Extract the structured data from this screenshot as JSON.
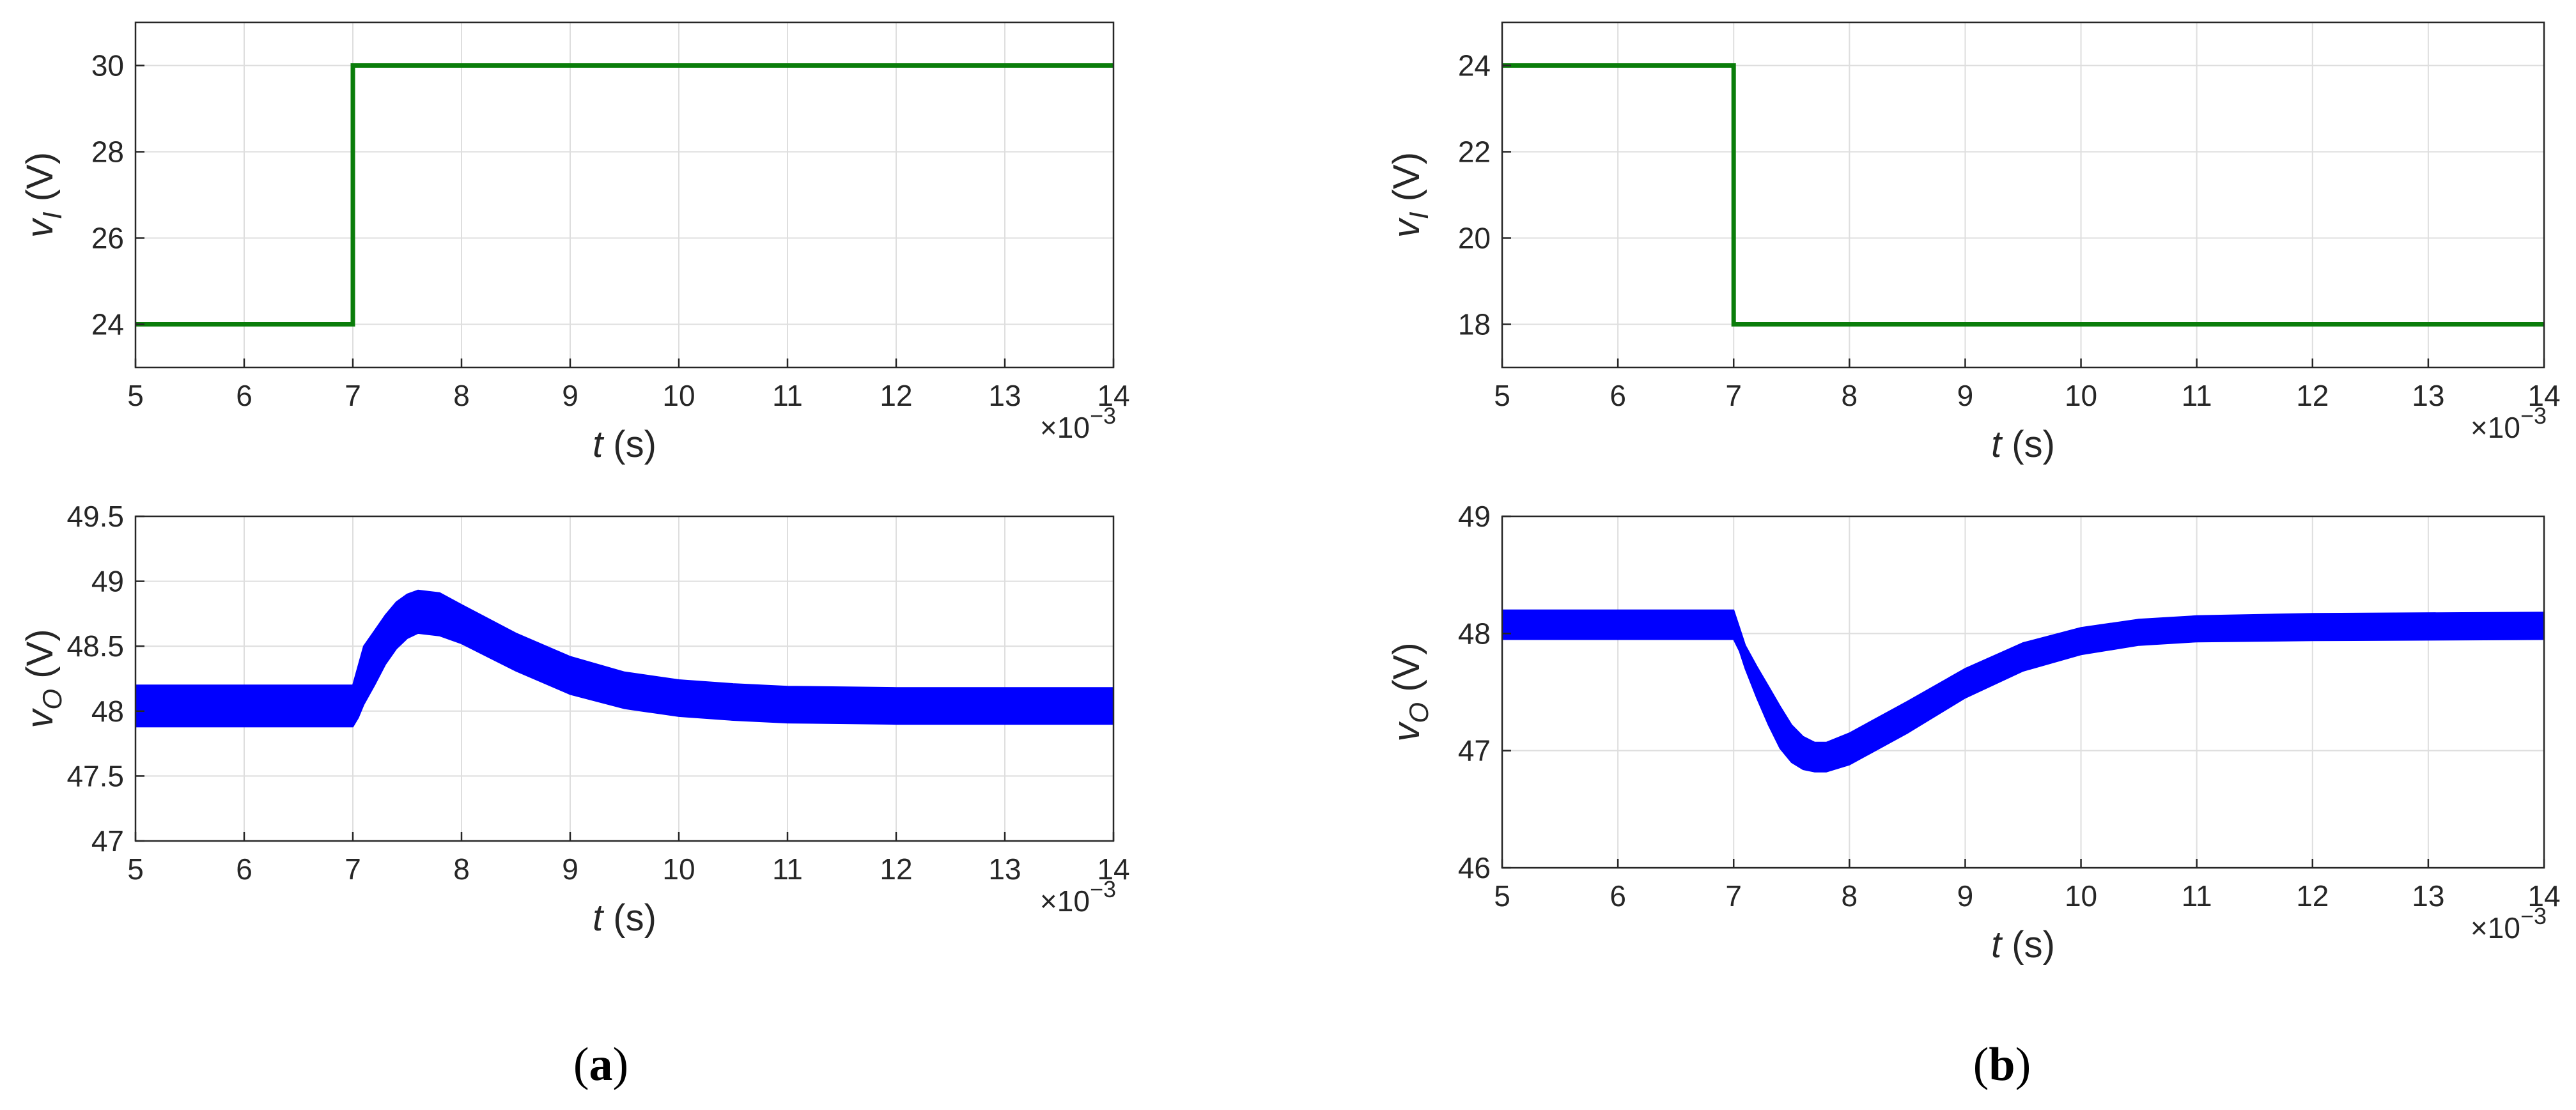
{
  "panels": [
    {
      "label": "a",
      "caption_open": "(",
      "caption_close": ")"
    },
    {
      "label": "b",
      "caption_open": "(",
      "caption_close": ")"
    }
  ],
  "exponent": {
    "base": "×10",
    "power": "−3"
  },
  "colors": {
    "input": "#0a7d0a",
    "output": "#0000ff",
    "grid": "#dedede",
    "axis": "#262626"
  },
  "chart_data": [
    {
      "id": "a-top",
      "type": "line",
      "ylabel": {
        "var": "v",
        "sub": "I",
        "unit": " (V)"
      },
      "xlabel": {
        "var": "t",
        "unit": " (s)"
      },
      "xlim": [
        5,
        14
      ],
      "ylim": [
        23,
        31
      ],
      "xticks": [
        5,
        6,
        7,
        8,
        9,
        10,
        11,
        12,
        13,
        14
      ],
      "yticks": [
        24,
        26,
        28,
        30
      ],
      "grid": true,
      "series": [
        {
          "x": [
            5,
            7,
            7,
            14
          ],
          "y": [
            24,
            24,
            30,
            30
          ]
        }
      ]
    },
    {
      "id": "a-bottom",
      "type": "area",
      "ylabel": {
        "var": "v",
        "sub": "O",
        "unit": " (V)"
      },
      "xlabel": {
        "var": "t",
        "unit": " (s)"
      },
      "xlim": [
        5,
        14
      ],
      "ylim": [
        47,
        49.5
      ],
      "xticks": [
        5,
        6,
        7,
        8,
        9,
        10,
        11,
        12,
        13,
        14
      ],
      "yticks": [
        47,
        47.5,
        48,
        48.5,
        49,
        49.5
      ],
      "grid": true,
      "band": {
        "x": [
          5,
          7.0,
          7.05,
          7.1,
          7.2,
          7.3,
          7.4,
          7.5,
          7.6,
          7.8,
          8.0,
          8.5,
          9.0,
          9.5,
          10.0,
          10.5,
          11.0,
          12.0,
          14.0
        ],
        "upper": [
          48.2,
          48.2,
          48.35,
          48.5,
          48.62,
          48.74,
          48.84,
          48.9,
          48.93,
          48.91,
          48.82,
          48.6,
          48.42,
          48.3,
          48.24,
          48.21,
          48.19,
          48.18,
          48.18
        ],
        "lower": [
          47.88,
          47.88,
          47.95,
          48.05,
          48.2,
          48.36,
          48.48,
          48.56,
          48.6,
          48.58,
          48.52,
          48.31,
          48.13,
          48.02,
          47.96,
          47.93,
          47.91,
          47.9,
          47.9
        ]
      }
    },
    {
      "id": "b-top",
      "type": "line",
      "ylabel": {
        "var": "v",
        "sub": "I",
        "unit": " (V)"
      },
      "xlabel": {
        "var": "t",
        "unit": " (s)"
      },
      "xlim": [
        5,
        14
      ],
      "ylim": [
        17,
        25
      ],
      "xticks": [
        5,
        6,
        7,
        8,
        9,
        10,
        11,
        12,
        13,
        14
      ],
      "yticks": [
        18,
        20,
        22,
        24
      ],
      "grid": true,
      "series": [
        {
          "x": [
            5,
            7,
            7,
            14
          ],
          "y": [
            24,
            24,
            18,
            18
          ]
        }
      ]
    },
    {
      "id": "b-bottom",
      "type": "area",
      "ylabel": {
        "var": "v",
        "sub": "O",
        "unit": " (V)"
      },
      "xlabel": {
        "var": "t",
        "unit": " (s)"
      },
      "xlim": [
        5,
        14
      ],
      "ylim": [
        46,
        49
      ],
      "xticks": [
        5,
        6,
        7,
        8,
        9,
        10,
        11,
        12,
        13,
        14
      ],
      "yticks": [
        46,
        47,
        48,
        49
      ],
      "grid": true,
      "band": {
        "x": [
          5,
          7.0,
          7.05,
          7.1,
          7.2,
          7.3,
          7.4,
          7.5,
          7.6,
          7.7,
          7.8,
          8.0,
          8.5,
          9.0,
          9.5,
          10.0,
          10.5,
          11.0,
          12.0,
          14.0
        ],
        "upper": [
          48.2,
          48.2,
          48.05,
          47.9,
          47.72,
          47.55,
          47.38,
          47.22,
          47.12,
          47.07,
          47.07,
          47.15,
          47.42,
          47.7,
          47.92,
          48.05,
          48.12,
          48.15,
          48.17,
          48.18
        ],
        "lower": [
          47.95,
          47.95,
          47.85,
          47.7,
          47.45,
          47.22,
          47.02,
          46.9,
          46.84,
          46.82,
          46.82,
          46.88,
          47.15,
          47.45,
          47.68,
          47.82,
          47.9,
          47.93,
          47.94,
          47.95
        ]
      }
    }
  ]
}
